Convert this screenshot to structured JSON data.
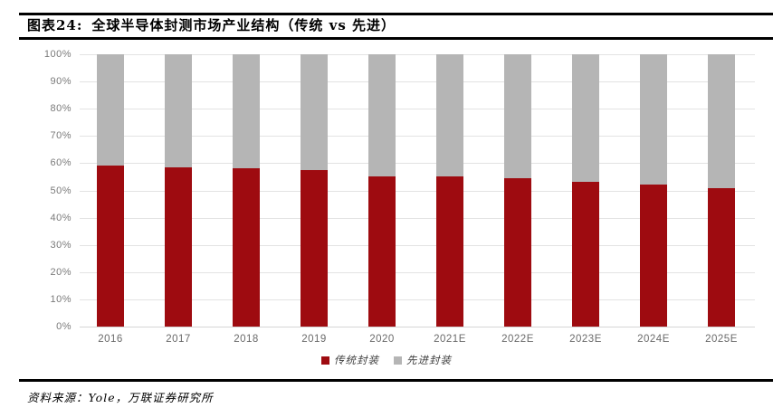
{
  "header": {
    "figure_label": "图表24:",
    "figure_title": "全球半导体封测市场产业结构（传统 vs 先进）"
  },
  "chart_data": {
    "type": "bar",
    "variant": "stacked-100-percent",
    "title": "全球半导体封测市场产业结构（传统 vs 先进）",
    "categories": [
      "2016",
      "2017",
      "2018",
      "2019",
      "2020",
      "2021E",
      "2022E",
      "2023E",
      "2024E",
      "2025E"
    ],
    "series": [
      {
        "name": "传统封装",
        "color": "#9e0b10",
        "values": [
          59.0,
          58.6,
          58.0,
          57.4,
          55.2,
          55.0,
          54.5,
          53.3,
          52.3,
          50.7
        ]
      },
      {
        "name": "先进封装",
        "color": "#b5b5b5",
        "values": [
          41.0,
          41.4,
          42.0,
          42.6,
          44.8,
          45.0,
          45.5,
          46.7,
          47.7,
          49.3
        ]
      }
    ],
    "ylim": [
      0,
      100
    ],
    "ytick_step": 10,
    "yticks": [
      "0%",
      "10%",
      "20%",
      "30%",
      "40%",
      "50%",
      "60%",
      "70%",
      "80%",
      "90%",
      "100%"
    ],
    "xlabel": "",
    "ylabel": "",
    "grid": true,
    "legend_position": "bottom"
  },
  "colors": {
    "traditional": "#9e0b10",
    "advanced": "#b5b5b5",
    "gridline": "#e3e3e3",
    "axis_label": "#7a7a7a",
    "rule": "#000000"
  },
  "footer": {
    "source": "资料来源：Yole，万联证券研究所"
  }
}
